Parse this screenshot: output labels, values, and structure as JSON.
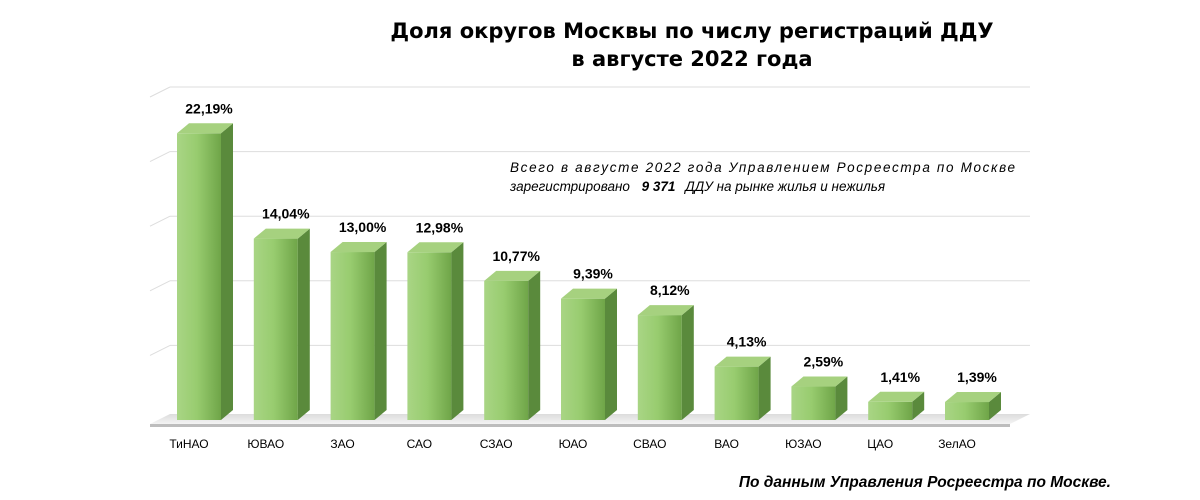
{
  "chart_data": {
    "type": "bar",
    "title_lines": [
      "Доля округов Москвы по числу регистраций ДДУ",
      "в августе 2022 года"
    ],
    "categories": [
      "ТиНАО",
      "ЮВАО",
      "ЗАО",
      "САО",
      "СЗАО",
      "ЮАО",
      "СВАО",
      "ВАО",
      "ЮЗАО",
      "ЦАО",
      "ЗелАО"
    ],
    "values": [
      22.19,
      14.04,
      13.0,
      12.98,
      10.77,
      9.39,
      8.12,
      4.13,
      2.59,
      1.41,
      1.39
    ],
    "value_labels": [
      "22,19%",
      "14,04%",
      "13,00%",
      "12,98%",
      "10,77%",
      "9,39%",
      "8,12%",
      "4,13%",
      "2,59%",
      "1,41%",
      "1,39%"
    ],
    "ylim": [
      0,
      25
    ],
    "gridlines": true,
    "bar_color": "#8cc465",
    "bar_side_color": "#5a8a3c",
    "bar_top_color": "#a6d17f",
    "annotation": {
      "line1": "Всего в августе 2022 года Управлением Росреестра по Москве",
      "line2_prefix": "зарегистрировано",
      "line2_value": "9 371",
      "line2_suffix": "ДДУ на рынке жилья и нежилья"
    },
    "source": "По данным Управления Росреестра по Москве."
  }
}
